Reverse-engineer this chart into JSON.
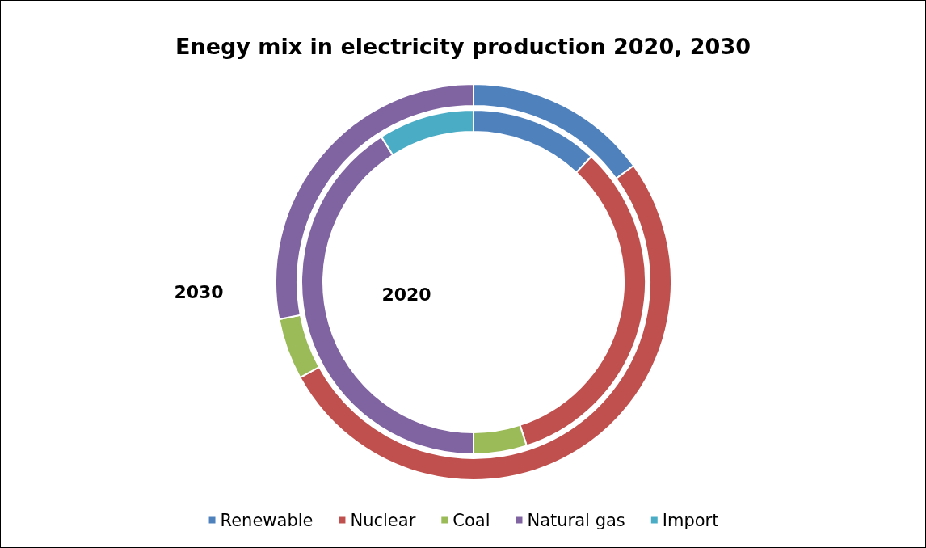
{
  "chart_data": {
    "type": "donut",
    "title": "Enegy mix in electricity production 2020, 2030",
    "categories": [
      "Renewable",
      "Nuclear",
      "Coal",
      "Natural gas",
      "Import"
    ],
    "colors": [
      "#4f81bd",
      "#c0504d",
      "#9bbb59",
      "#8064a2",
      "#4bacc6"
    ],
    "series": [
      {
        "name": "2020",
        "values": [
          12,
          33,
          5,
          41,
          9
        ]
      },
      {
        "name": "2030",
        "values": [
          15,
          52,
          5,
          28,
          0
        ]
      }
    ],
    "legend": "bottom"
  }
}
